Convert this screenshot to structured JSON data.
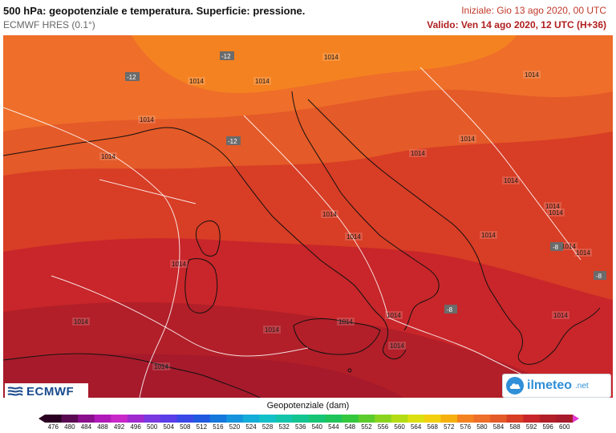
{
  "header": {
    "title": "500 hPa: geopotenziale e temperatura. Superficie: pressione.",
    "model": "ECMWF HRES (0.1°)",
    "init": "Iniziale: Gio 13 ago 2020, 00 UTC",
    "valid": "Valido: Ven 14 ago 2020, 12 UTC (H+36)"
  },
  "map": {
    "region": "Italy and central Mediterranean",
    "isobar_labels": [
      "1014",
      "1014",
      "1014",
      "1014",
      "1014",
      "1014",
      "1014",
      "1014",
      "1014",
      "1014",
      "1014",
      "1014",
      "1014",
      "1014",
      "1014",
      "1014",
      "1014",
      "1014",
      "1014",
      "1014",
      "1014",
      "1014",
      "1014",
      "1014"
    ],
    "temperature_labels": [
      "-12",
      "-12",
      "-12",
      "-8",
      "-8",
      "-8"
    ],
    "colors": {
      "band_576": "#f58220",
      "band_580": "#ee6e2a",
      "band_584": "#e45a28",
      "band_588": "#d83d25",
      "band_592": "#c8262a",
      "band_596": "#b21f29",
      "band_600": "#a61a2b",
      "coastline": "#111111",
      "isobar": "#ffffff"
    }
  },
  "logos": {
    "ecmwf": "ECMWF",
    "ilmeteo": "ilmeteo",
    "ilmeteo_tld": ".net"
  },
  "legend": {
    "title": "Geopotenziale (dam)",
    "ticks": [
      "476",
      "480",
      "484",
      "488",
      "492",
      "496",
      "500",
      "504",
      "508",
      "512",
      "516",
      "520",
      "524",
      "528",
      "532",
      "536",
      "540",
      "544",
      "548",
      "552",
      "556",
      "560",
      "564",
      "568",
      "572",
      "576",
      "580",
      "584",
      "588",
      "592",
      "596",
      "600"
    ],
    "colors": [
      "#2a0022",
      "#5a0a52",
      "#8a0f8c",
      "#b01ab8",
      "#c928c9",
      "#a02ad0",
      "#7a38e0",
      "#5a3ee8",
      "#3a48e6",
      "#2058e0",
      "#1478dc",
      "#1494dc",
      "#14acd8",
      "#14c0c8",
      "#14c4aa",
      "#14c490",
      "#16c474",
      "#1ec45a",
      "#34c83e",
      "#5ccc2c",
      "#8ad420",
      "#b4dc14",
      "#dce010",
      "#f2d010",
      "#f6b010",
      "#f58220",
      "#ee6e2a",
      "#e45a28",
      "#d83d25",
      "#c8262a",
      "#b21f29",
      "#a61a2b"
    ]
  }
}
